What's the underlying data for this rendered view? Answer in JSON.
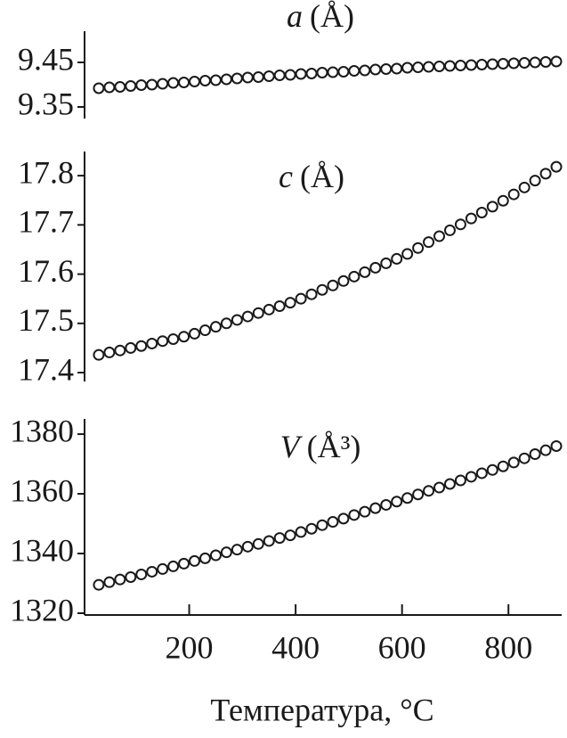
{
  "chart_data": [
    {
      "type": "scatter",
      "title_symbol": "a",
      "title_unit": "(Å)",
      "color": "#1a1a1a",
      "x": [
        30,
        50,
        70,
        90,
        110,
        130,
        150,
        170,
        190,
        210,
        230,
        250,
        270,
        290,
        310,
        330,
        350,
        370,
        390,
        410,
        430,
        450,
        470,
        490,
        510,
        530,
        550,
        570,
        590,
        610,
        630,
        650,
        670,
        690,
        710,
        730,
        750,
        770,
        790,
        810,
        830,
        850,
        870,
        890
      ],
      "values": [
        9.392,
        9.394,
        9.395,
        9.397,
        9.399,
        9.4,
        9.402,
        9.404,
        9.405,
        9.407,
        9.409,
        9.41,
        9.412,
        9.414,
        9.416,
        9.417,
        9.419,
        9.421,
        9.422,
        9.424,
        9.425,
        9.427,
        9.428,
        9.429,
        9.431,
        9.432,
        9.434,
        9.435,
        9.436,
        9.438,
        9.439,
        9.44,
        9.441,
        9.442,
        9.443,
        9.444,
        9.445,
        9.446,
        9.447,
        9.448,
        9.449,
        9.45,
        9.451,
        9.452
      ],
      "xlim": [
        0,
        900
      ],
      "ylim": [
        9.324,
        9.52
      ],
      "yticks": [
        9.35,
        9.45
      ]
    },
    {
      "type": "scatter",
      "title_symbol": "c",
      "title_unit": "(Å)",
      "color": "#1a1a1a",
      "x": [
        30,
        50,
        70,
        90,
        110,
        130,
        150,
        170,
        190,
        210,
        230,
        250,
        270,
        290,
        310,
        330,
        350,
        370,
        390,
        410,
        430,
        450,
        470,
        490,
        510,
        530,
        550,
        570,
        590,
        610,
        630,
        650,
        670,
        690,
        710,
        730,
        750,
        770,
        790,
        810,
        830,
        850,
        870,
        890
      ],
      "values": [
        17.436,
        17.441,
        17.445,
        17.45,
        17.454,
        17.459,
        17.464,
        17.468,
        17.473,
        17.479,
        17.486,
        17.493,
        17.5,
        17.507,
        17.514,
        17.521,
        17.528,
        17.535,
        17.542,
        17.55,
        17.559,
        17.568,
        17.577,
        17.586,
        17.595,
        17.604,
        17.613,
        17.622,
        17.631,
        17.641,
        17.653,
        17.665,
        17.677,
        17.689,
        17.701,
        17.713,
        17.725,
        17.737,
        17.749,
        17.762,
        17.776,
        17.79,
        17.804,
        17.818
      ],
      "xlim": [
        0,
        900
      ],
      "ylim": [
        17.382,
        17.849
      ],
      "yticks": [
        17.4,
        17.5,
        17.6,
        17.7,
        17.8
      ]
    },
    {
      "type": "scatter",
      "title_symbol": "V",
      "title_unit": "(Å³)",
      "color": "#1a1a1a",
      "x": [
        30,
        50,
        70,
        90,
        110,
        130,
        150,
        170,
        190,
        210,
        230,
        250,
        270,
        290,
        310,
        330,
        350,
        370,
        390,
        410,
        430,
        450,
        470,
        490,
        510,
        530,
        550,
        570,
        590,
        610,
        630,
        650,
        670,
        690,
        710,
        730,
        750,
        770,
        790,
        810,
        830,
        850,
        870,
        890
      ],
      "values": [
        1329.5,
        1330.4,
        1331.3,
        1332.1,
        1333.0,
        1333.9,
        1334.8,
        1335.7,
        1336.6,
        1337.5,
        1338.4,
        1339.4,
        1340.4,
        1341.3,
        1342.3,
        1343.2,
        1344.2,
        1345.2,
        1346.1,
        1347.2,
        1348.3,
        1349.5,
        1350.6,
        1351.7,
        1352.9,
        1354.0,
        1355.2,
        1356.3,
        1357.4,
        1358.6,
        1359.8,
        1361.0,
        1362.1,
        1363.3,
        1364.5,
        1365.7,
        1366.9,
        1368.0,
        1369.2,
        1370.5,
        1371.9,
        1373.3,
        1374.6,
        1376.0
      ],
      "xlim": [
        0,
        900
      ],
      "ylim": [
        1319.4,
        1385.1
      ],
      "yticks": [
        1320,
        1340,
        1360,
        1380
      ],
      "xticks": [
        200,
        400,
        600,
        800
      ],
      "xlabel": "Температура, °C"
    }
  ]
}
